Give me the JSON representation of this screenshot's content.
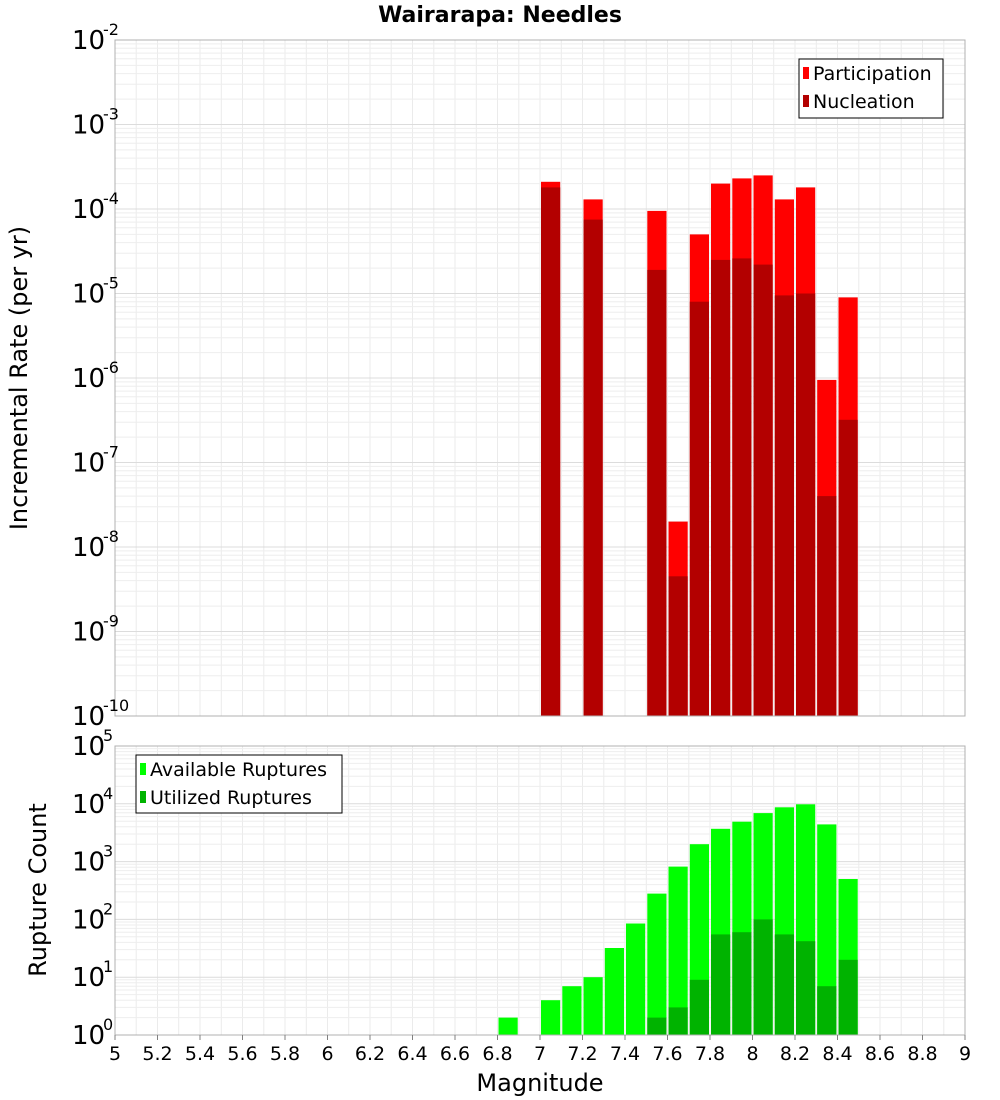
{
  "chart_data": [
    {
      "type": "bar",
      "title": "Wairarapa: Needles",
      "xlabel": "",
      "ylabel": "Incremental Rate (per yr)",
      "yscale": "log",
      "ylim": [
        1e-10,
        0.01
      ],
      "xlim": [
        5,
        9
      ],
      "ytick_labels": [
        {
          "base": "10",
          "exp": "-2"
        },
        {
          "base": "10",
          "exp": "-3"
        },
        {
          "base": "10",
          "exp": "-4"
        },
        {
          "base": "10",
          "exp": "-5"
        },
        {
          "base": "10",
          "exp": "-6"
        },
        {
          "base": "10",
          "exp": "-7"
        },
        {
          "base": "10",
          "exp": "-8"
        },
        {
          "base": "10",
          "exp": "-9"
        },
        {
          "base": "10",
          "exp": "-10"
        }
      ],
      "legend": {
        "position": "top-right",
        "items": [
          "Participation",
          "Nucleation"
        ]
      },
      "x": [
        7.05,
        7.25,
        7.55,
        7.65,
        7.75,
        7.85,
        7.95,
        8.05,
        8.15,
        8.25,
        8.35,
        8.45
      ],
      "series": [
        {
          "name": "Participation",
          "color": "#ff0000",
          "values": [
            0.00021,
            0.00013,
            9.5e-05,
            2e-08,
            5e-05,
            0.0002,
            0.00023,
            0.00025,
            0.00013,
            0.00018,
            9.5e-07,
            9e-06
          ]
        },
        {
          "name": "Nucleation",
          "color": "#b30000",
          "values": [
            0.00018,
            7.5e-05,
            1.9e-05,
            4.5e-09,
            8e-06,
            2.5e-05,
            2.6e-05,
            2.2e-05,
            9.5e-06,
            1e-05,
            4e-08,
            3.2e-07
          ]
        }
      ],
      "grid": true
    },
    {
      "type": "bar",
      "title": "",
      "xlabel": "Magnitude",
      "ylabel": "Rupture Count",
      "yscale": "log",
      "ylim": [
        1,
        100000.0
      ],
      "xlim": [
        5,
        9
      ],
      "ytick_labels": [
        {
          "base": "10",
          "exp": "5"
        },
        {
          "base": "10",
          "exp": "4"
        },
        {
          "base": "10",
          "exp": "3"
        },
        {
          "base": "10",
          "exp": "2"
        },
        {
          "base": "10",
          "exp": "1"
        },
        {
          "base": "10",
          "exp": "0"
        }
      ],
      "xtick_labels": [
        "5",
        "5.2",
        "5.4",
        "5.6",
        "5.8",
        "6",
        "6.2",
        "6.4",
        "6.6",
        "6.8",
        "7",
        "7.2",
        "7.4",
        "7.6",
        "7.8",
        "8",
        "8.2",
        "8.4",
        "8.6",
        "8.8",
        "9"
      ],
      "legend": {
        "position": "top-left",
        "items": [
          "Available Ruptures",
          "Utilized Ruptures"
        ]
      },
      "x": [
        6.85,
        6.95,
        7.05,
        7.15,
        7.25,
        7.35,
        7.45,
        7.55,
        7.65,
        7.75,
        7.85,
        7.95,
        8.05,
        8.15,
        8.25,
        8.35,
        8.45,
        8.55
      ],
      "series": [
        {
          "name": "Available Ruptures",
          "color": "#00ff00",
          "values": [
            2,
            1,
            4,
            7,
            10,
            32,
            85,
            280,
            820,
            2000,
            3700,
            4900,
            6900,
            8700,
            9800,
            4400,
            500,
            1
          ]
        },
        {
          "name": "Utilized Ruptures",
          "color": "#00b300",
          "values": [
            0,
            0,
            1,
            0,
            1,
            0,
            0,
            2,
            3,
            9,
            55,
            60,
            100,
            55,
            42,
            7,
            20,
            0
          ]
        }
      ],
      "grid": true
    }
  ]
}
